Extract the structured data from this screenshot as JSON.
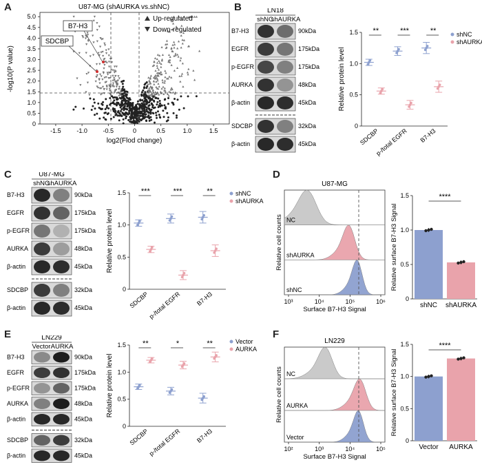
{
  "colors": {
    "shNC": "#8da0cf",
    "shAURKA": "#e9a3ab",
    "nc_hist": "#c8c8c8"
  },
  "panelA": {
    "letter": "A",
    "title": "U87-MG (shAURKA vs.shNC)",
    "xlabel": "log2(Flod change)",
    "ylabel": "-log10(P value)",
    "legend_up": "Up-regulated",
    "legend_down": "Down-regulated",
    "callout_b7h3": "B7-H3",
    "callout_sdcbp": "SDCBP",
    "xticks": [
      "-1.5",
      "-1.0",
      "-0.5",
      "0",
      "0.5",
      "1.0",
      "1.5"
    ],
    "yticks": [
      "0",
      "0.5",
      "1.0",
      "1.5",
      "2.0",
      "2.5",
      "3.0",
      "3.5",
      "4.0",
      "4.5",
      "5.0"
    ]
  },
  "panelB": {
    "letter": "B",
    "cell": "LN18",
    "lanes": [
      "shNC",
      "shAURKA"
    ],
    "rows": [
      {
        "label": "B7-H3",
        "kda": "90kDa"
      },
      {
        "label": "EGFR",
        "kda": "175kDa"
      },
      {
        "label": "p-EGFR",
        "kda": "175kDa"
      },
      {
        "label": "AURKA",
        "kda": "48kDa"
      },
      {
        "label": "β-actin",
        "kda": "45kDa"
      },
      {
        "label": "SDCBP",
        "kda": "32kDa"
      },
      {
        "label": "β-actin",
        "kda": "45kDa"
      }
    ]
  },
  "panelC": {
    "letter": "C",
    "cell": "U87-MG",
    "lanes": [
      "shNC",
      "shAURKA"
    ],
    "rows": [
      {
        "label": "B7-H3",
        "kda": "90kDa"
      },
      {
        "label": "EGFR",
        "kda": "175kDa"
      },
      {
        "label": "p-EGFR",
        "kda": "175kDa"
      },
      {
        "label": "AURKA",
        "kda": "48kDa"
      },
      {
        "label": "β-actin",
        "kda": "45kDa"
      },
      {
        "label": "SDCBP",
        "kda": "32kDa"
      },
      {
        "label": "β-actin",
        "kda": "45kDa"
      }
    ]
  },
  "panelD": {
    "letter": "D",
    "cell": "U87-MG",
    "hist_ylabel": "Relative cell counts",
    "hist_xlabel": "Surface B7-H3 Signal",
    "hist_rows": [
      "NC",
      "shAURKA",
      "shNC"
    ],
    "hist_xticks": [
      "10³",
      "10⁴",
      "10⁵",
      "10⁶"
    ],
    "bar_ylabel": "Relative surface B7-H3 Signal",
    "sig": "****"
  },
  "panelE": {
    "letter": "E",
    "cell": "LN229",
    "lanes": [
      "Vector",
      "AURKA"
    ],
    "rows": [
      {
        "label": "B7-H3",
        "kda": "90kDa"
      },
      {
        "label": "EGFR",
        "kda": "175kDa"
      },
      {
        "label": "p-EGFR",
        "kda": "175kDa"
      },
      {
        "label": "AURKA",
        "kda": "48kDa"
      },
      {
        "label": "β-actin",
        "kda": "45kDa"
      },
      {
        "label": "SDCBP",
        "kda": "32kDa"
      },
      {
        "label": "β-actin",
        "kda": "45kDa"
      }
    ]
  },
  "panelF": {
    "letter": "F",
    "cell": "LN229",
    "hist_ylabel": "Relative cell counts",
    "hist_xlabel": "Surface B7-H3 Signal",
    "hist_rows": [
      "NC",
      "AURKA",
      "Vector"
    ],
    "hist_xticks": [
      "10²",
      "10³",
      "10⁴",
      "10⁵"
    ],
    "bar_ylabel": "Relative surface B7-H3 Signal",
    "sig": "****"
  },
  "chart_data": [
    {
      "id": "B-quant",
      "type": "scatter",
      "ylabel": "Relative protein level",
      "ylim": [
        0,
        1.5
      ],
      "yticks": [
        "0",
        "0.5",
        "1.0",
        "1.5"
      ],
      "categories": [
        "SDCBP",
        "p-/total EGFR",
        "B7-H3"
      ],
      "series": [
        {
          "name": "shNC",
          "values": [
            1.02,
            1.2,
            1.25
          ]
        },
        {
          "name": "shAURKA",
          "values": [
            0.56,
            0.34,
            0.63
          ]
        }
      ],
      "significance": [
        "**",
        "***",
        "**"
      ]
    },
    {
      "id": "C-quant",
      "type": "scatter",
      "ylabel": "Relative protein level",
      "ylim": [
        0,
        1.5
      ],
      "yticks": [
        "0",
        "0.5",
        "1.0",
        "1.5"
      ],
      "categories": [
        "SDCBP",
        "p-/total EGFR",
        "B7-H3"
      ],
      "series": [
        {
          "name": "shNC",
          "values": [
            1.03,
            1.1,
            1.12
          ]
        },
        {
          "name": "shAURKA",
          "values": [
            0.62,
            0.22,
            0.6
          ]
        }
      ],
      "significance": [
        "***",
        "***",
        "**"
      ]
    },
    {
      "id": "D-bar",
      "type": "bar",
      "ylim": [
        0,
        1.5
      ],
      "yticks": [
        "0",
        "0.5",
        "1.0",
        "1.5"
      ],
      "categories": [
        "shNC",
        "shAURKA"
      ],
      "values": [
        1.0,
        0.53
      ],
      "ylabel": "Relative surface B7-H3 Signal"
    },
    {
      "id": "E-quant",
      "type": "scatter",
      "ylabel": "Relative protein level",
      "ylim": [
        0,
        1.5
      ],
      "yticks": [
        "0",
        "0.5",
        "1.0",
        "1.5"
      ],
      "categories": [
        "SDCBP",
        "p-/total EGFR",
        "B7-H3"
      ],
      "series": [
        {
          "name": "Vector",
          "values": [
            0.73,
            0.65,
            0.52
          ]
        },
        {
          "name": "AURKA",
          "values": [
            1.22,
            1.13,
            1.28
          ]
        }
      ],
      "significance": [
        "**",
        "*",
        "**"
      ]
    },
    {
      "id": "F-bar",
      "type": "bar",
      "ylim": [
        0,
        1.5
      ],
      "yticks": [
        "0",
        "0.5",
        "1.0",
        "1.5"
      ],
      "categories": [
        "Vector",
        "AURKA"
      ],
      "values": [
        1.0,
        1.28
      ],
      "ylabel": "Relative surface B7-H3 Signal"
    }
  ]
}
